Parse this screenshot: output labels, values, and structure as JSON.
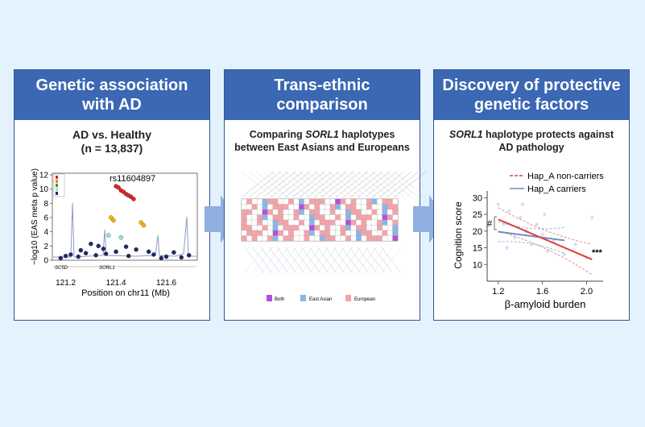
{
  "panel1": {
    "header": "Genetic association with AD",
    "subtitle_line1": "AD vs. Healthy",
    "subtitle_line2": "(n = 13,837)",
    "chart_data": {
      "type": "scatter",
      "title": "",
      "xlabel": "Position on chr11 (Mb)",
      "ylabel": "−log10 (EAS meta p value)",
      "xlim": [
        121.15,
        121.72
      ],
      "ylim": [
        0,
        12
      ],
      "x_ticks": [
        "121.2",
        "121.4",
        "121.6"
      ],
      "y_ticks": [
        "0",
        "2",
        "4",
        "6",
        "8",
        "10",
        "12"
      ],
      "annotation": "rs11604897",
      "gene_labels": [
        "SC5D",
        "SORL1"
      ],
      "points": [
        {
          "x": 121.4,
          "y": 10.4
        },
        {
          "x": 121.41,
          "y": 10.2
        },
        {
          "x": 121.42,
          "y": 9.8
        },
        {
          "x": 121.43,
          "y": 9.6
        },
        {
          "x": 121.44,
          "y": 9.3
        },
        {
          "x": 121.45,
          "y": 9.1
        },
        {
          "x": 121.46,
          "y": 8.9
        },
        {
          "x": 121.47,
          "y": 8.6
        },
        {
          "x": 121.38,
          "y": 6.0
        },
        {
          "x": 121.39,
          "y": 5.6
        },
        {
          "x": 121.5,
          "y": 5.3
        },
        {
          "x": 121.51,
          "y": 4.9
        },
        {
          "x": 121.37,
          "y": 3.5
        },
        {
          "x": 121.42,
          "y": 3.2
        },
        {
          "x": 121.3,
          "y": 2.3
        },
        {
          "x": 121.33,
          "y": 2.0
        },
        {
          "x": 121.35,
          "y": 1.6
        },
        {
          "x": 121.44,
          "y": 1.9
        },
        {
          "x": 121.48,
          "y": 1.5
        },
        {
          "x": 121.53,
          "y": 1.2
        },
        {
          "x": 121.22,
          "y": 0.8
        },
        {
          "x": 121.25,
          "y": 0.5
        },
        {
          "x": 121.28,
          "y": 1.0
        },
        {
          "x": 121.32,
          "y": 0.7
        },
        {
          "x": 121.36,
          "y": 0.9
        },
        {
          "x": 121.4,
          "y": 1.2
        },
        {
          "x": 121.45,
          "y": 0.6
        },
        {
          "x": 121.55,
          "y": 0.8
        },
        {
          "x": 121.6,
          "y": 0.5
        },
        {
          "x": 121.63,
          "y": 1.1
        },
        {
          "x": 121.66,
          "y": 0.4
        },
        {
          "x": 121.69,
          "y": 0.7
        },
        {
          "x": 121.18,
          "y": 0.3
        },
        {
          "x": 121.2,
          "y": 0.6
        },
        {
          "x": 121.26,
          "y": 1.4
        },
        {
          "x": 121.58,
          "y": 0.3
        }
      ]
    }
  },
  "panel2": {
    "header": "Trans-ethnic comparison",
    "subtitle_line1_a": "Comparing ",
    "subtitle_line1_gene": "SORL1",
    "subtitle_line1_b": " haplotypes",
    "subtitle_line2": "between East Asians and Europeans",
    "legend": [
      {
        "label": "Both",
        "color": "#b44fd6"
      },
      {
        "label": "East Asian",
        "color": "#8ab6e6"
      },
      {
        "label": "European",
        "color": "#f4a3a8"
      }
    ]
  },
  "panel3": {
    "header": "Discovery of protective genetic factors",
    "subtitle_line1_gene": "SORL1",
    "subtitle_line1_b": " haplotype protects against",
    "subtitle_line2": "AD pathology",
    "chart_data": {
      "type": "line",
      "xlabel": "β-amyloid burden",
      "ylabel": "Cognition score",
      "xlim": [
        1.1,
        2.15
      ],
      "ylim": [
        5,
        32
      ],
      "x_ticks": [
        "1.2",
        "1.6",
        "2.0"
      ],
      "y_ticks": [
        "10",
        "15",
        "20",
        "25",
        "30"
      ],
      "series": [
        {
          "name": "Hap_A non-carriers",
          "color": "#e23b3b",
          "x": [
            1.2,
            2.05
          ],
          "y": [
            23.5,
            11.5
          ]
        },
        {
          "name": "Hap_A carriers",
          "color": "#6d8ec9",
          "x": [
            1.2,
            1.8
          ],
          "y": [
            19.8,
            17.2
          ]
        }
      ],
      "annotations": [
        "#",
        "***"
      ]
    }
  },
  "colors": {
    "header": "#3b67b3",
    "arrow": "#8fb0e0",
    "background": "#e3f2fd"
  }
}
